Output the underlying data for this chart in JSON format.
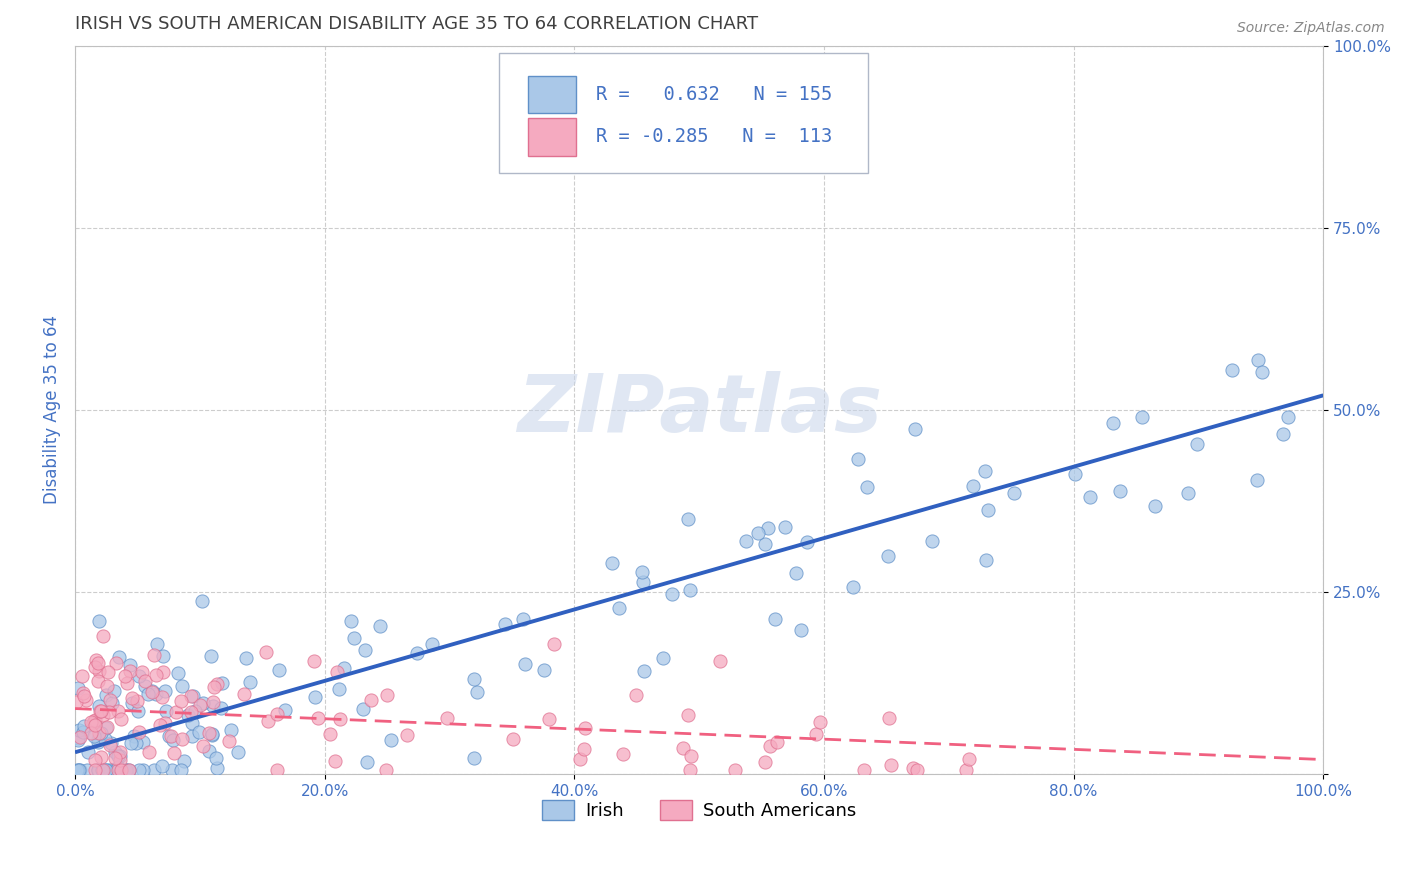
{
  "title": "IRISH VS SOUTH AMERICAN DISABILITY AGE 35 TO 64 CORRELATION CHART",
  "source": "Source: ZipAtlas.com",
  "ylabel": "Disability Age 35 to 64",
  "xlim": [
    0.0,
    1.0
  ],
  "ylim": [
    0.0,
    1.0
  ],
  "xtick_vals": [
    0.0,
    0.2,
    0.4,
    0.6,
    0.8,
    1.0
  ],
  "xtick_labels": [
    "0.0%",
    "20.0%",
    "40.0%",
    "60.0%",
    "80.0%",
    "100.0%"
  ],
  "ytick_vals": [
    0.0,
    0.25,
    0.5,
    0.75,
    1.0
  ],
  "ytick_labels": [
    "",
    "25.0%",
    "50.0%",
    "75.0%",
    "100.0%"
  ],
  "irish_R": 0.632,
  "irish_N": 155,
  "sa_R": -0.285,
  "sa_N": 113,
  "irish_fill_color": "#aac8e8",
  "sa_fill_color": "#f5aac0",
  "irish_edge_color": "#6090c8",
  "sa_edge_color": "#e07090",
  "irish_line_color": "#3060c0",
  "sa_line_color": "#f06080",
  "legend_label_irish": "Irish",
  "legend_label_sa": "South Americans",
  "watermark": "ZIPatlas",
  "background_color": "#ffffff",
  "grid_color": "#c8c8c8",
  "title_color": "#404040",
  "tick_label_color": "#4472c4",
  "irish_line_y0": 0.03,
  "irish_line_y1": 0.52,
  "sa_line_y0": 0.09,
  "sa_line_y1": 0.02
}
